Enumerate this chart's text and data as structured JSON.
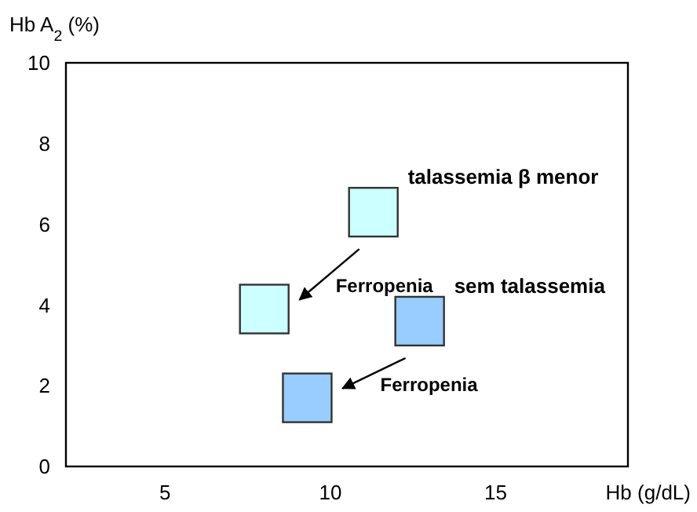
{
  "chart_data": {
    "type": "scatter",
    "xlabel": "Hb (g/dL)",
    "ylabel": "Hb A$_{2}$ (%)",
    "xlim": [
      2,
      19
    ],
    "ylim": [
      0,
      10
    ],
    "xticks": [
      5,
      10,
      15
    ],
    "yticks": [
      0,
      2,
      4,
      6,
      8,
      10
    ],
    "marker": "square",
    "grid": false,
    "series": [
      {
        "name": "talassemia β menor",
        "color": "#ccffff",
        "x": [
          11.3,
          8.0
        ],
        "values": [
          6.3,
          3.9
        ]
      },
      {
        "name": "sem talassemia",
        "color": "#99ccff",
        "x": [
          12.7,
          9.3
        ],
        "values": [
          3.6,
          1.7
        ]
      }
    ],
    "annotations": [
      "Ferropenia",
      "Ferropenia"
    ]
  }
}
